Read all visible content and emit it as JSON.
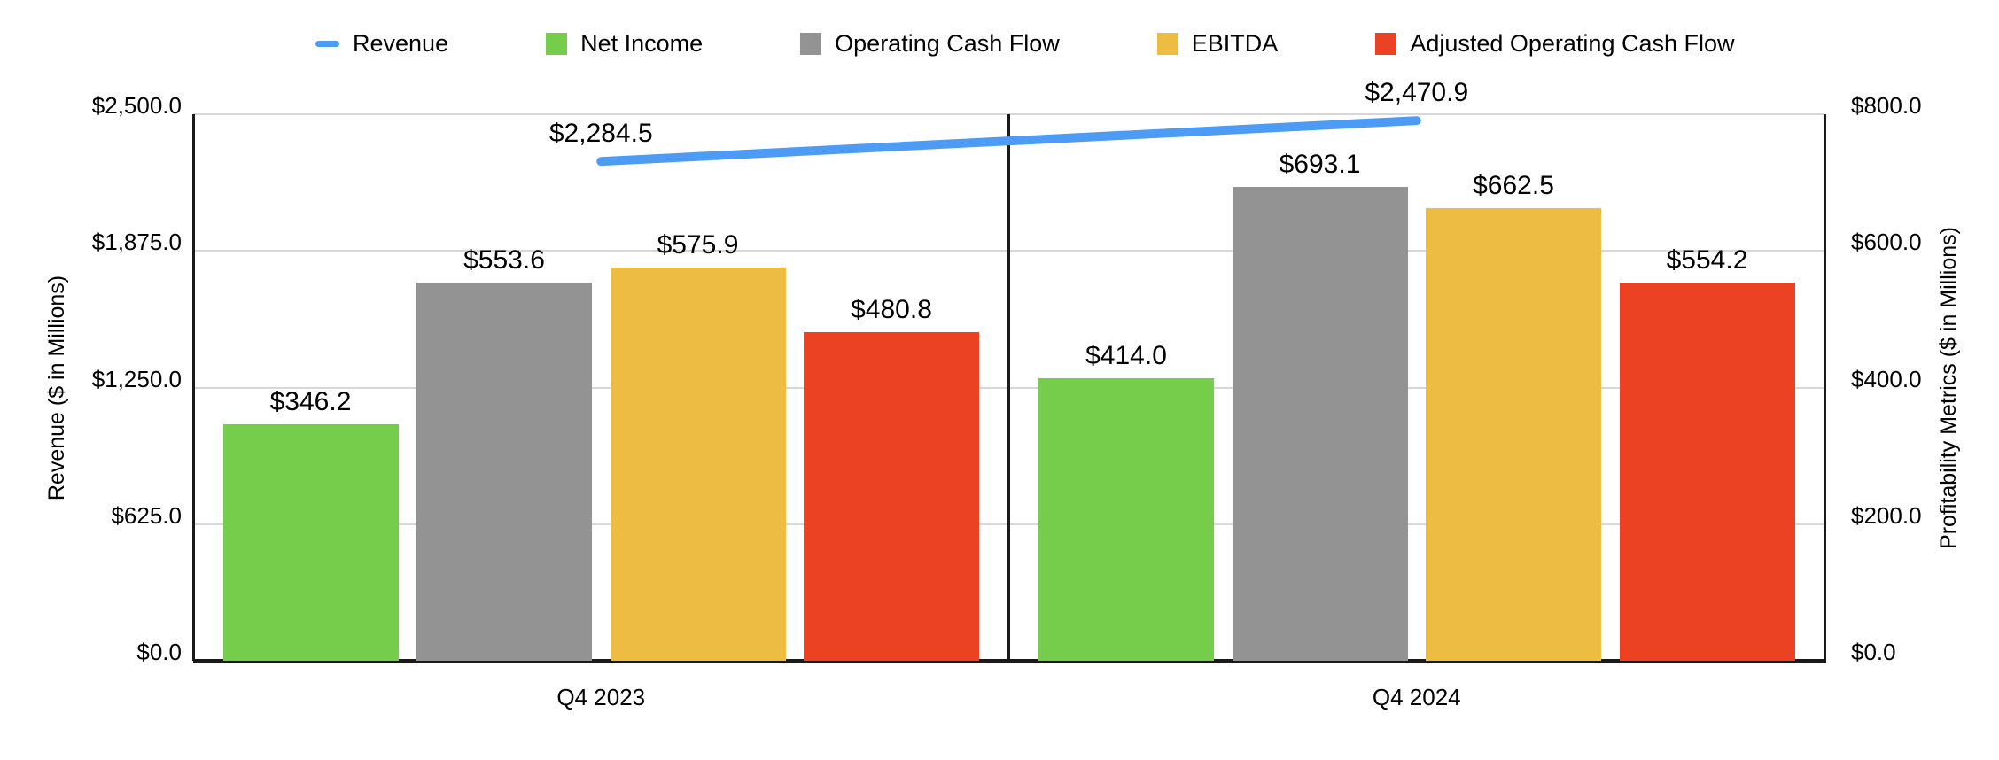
{
  "chart_data": {
    "type": "combo-bar-line",
    "categories": [
      "Q4 2023",
      "Q4 2024"
    ],
    "line_series": {
      "name": "Revenue",
      "axis": "left",
      "color": "#4C9BF4",
      "values": [
        2284.5,
        2470.9
      ],
      "value_labels": [
        "$2,284.5",
        "$2,470.9"
      ]
    },
    "bar_series": [
      {
        "name": "Net Income",
        "color": "#76CD4C",
        "values": [
          346.2,
          414.0
        ],
        "value_labels": [
          "$346.2",
          "$414.0"
        ]
      },
      {
        "name": "Operating Cash Flow",
        "color": "#939393",
        "values": [
          553.6,
          693.1
        ],
        "value_labels": [
          "$553.6",
          "$693.1"
        ]
      },
      {
        "name": "EBITDA",
        "color": "#ECBD42",
        "values": [
          575.9,
          662.5
        ],
        "value_labels": [
          "$575.9",
          "$662.5"
        ]
      },
      {
        "name": "Adjusted Operating Cash Flow",
        "color": "#EB4223",
        "values": [
          480.8,
          554.2
        ],
        "value_labels": [
          "$480.8",
          "$554.2"
        ]
      }
    ],
    "left_axis": {
      "title": "Revenue ($ in Millions)",
      "min": 0,
      "max": 2500,
      "tick_labels": [
        "$2,500.0",
        "$1,875.0",
        "$1,250.0",
        "$625.0",
        "$0.0"
      ]
    },
    "right_axis": {
      "title": "Profitability Metrics ($ in Millions)",
      "min": 0,
      "max": 800,
      "tick_labels": [
        "$800.0",
        "$600.0",
        "$400.0",
        "$200.0",
        "$0.0"
      ]
    },
    "legend_position": "top",
    "grid": "horizontal"
  },
  "colors": {
    "grid": "#D7D7D7",
    "frame": "#1A1A1A",
    "text": "#000000",
    "background": "#FFFFFF"
  }
}
